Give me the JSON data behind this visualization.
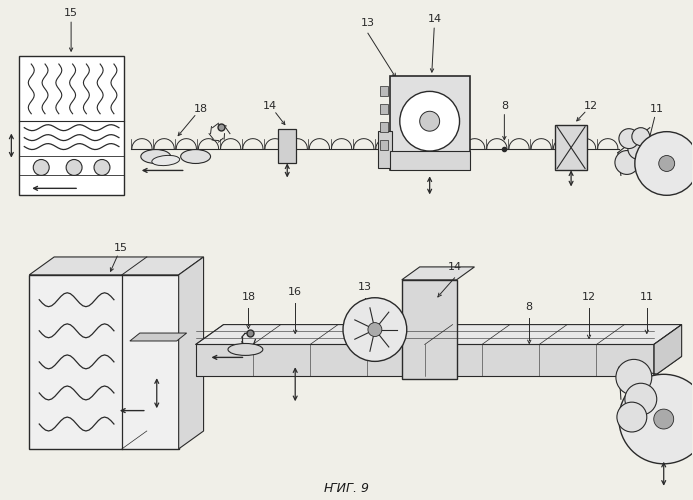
{
  "title": "ҤИГ. 9",
  "bg_color": "#f0efe8",
  "line_color": "#2a2a2a",
  "label_color": "#1a1a1a"
}
